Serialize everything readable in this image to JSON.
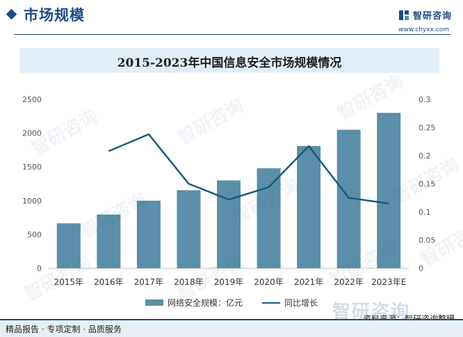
{
  "header": {
    "section_title": "市场规模",
    "brand_name": "智研咨询",
    "brand_url": "www.chyxx.com"
  },
  "watermark_text": "智研咨询",
  "chart_data": {
    "type": "bar",
    "title": "2015-2023年中国信息安全市场规模情况",
    "categories": [
      "2015年",
      "2016年",
      "2017年",
      "2018年",
      "2019年",
      "2020年",
      "2021年",
      "2022年",
      "2023年E"
    ],
    "series": [
      {
        "name": "网络安全规模：亿元",
        "type": "bar",
        "axis": "left",
        "color": "#5b8fa9",
        "values": [
          665,
          795,
          1000,
          1155,
          1300,
          1480,
          1810,
          2050,
          2300
        ]
      },
      {
        "name": "同比增长",
        "type": "line",
        "axis": "right",
        "color": "#1a5b78",
        "values": [
          null,
          0.208,
          0.238,
          0.15,
          0.122,
          0.144,
          0.217,
          0.125,
          0.115
        ]
      }
    ],
    "y_left": {
      "min": 0,
      "max": 2500,
      "ticks": [
        "0",
        "500",
        "1000",
        "1500",
        "2000",
        "2500"
      ]
    },
    "y_right": {
      "min": 0,
      "max": 0.3,
      "ticks": [
        "0",
        "0.05",
        "0.1",
        "0.15",
        "0.2",
        "0.25",
        "0.3"
      ]
    },
    "grid": false,
    "legend_position": "bottom"
  },
  "footer": {
    "source": "资料来源：智研咨询整理",
    "bottom_text": "精品报告 · 专项定制 · 品质服务",
    "wordmark": "智研咨询"
  }
}
